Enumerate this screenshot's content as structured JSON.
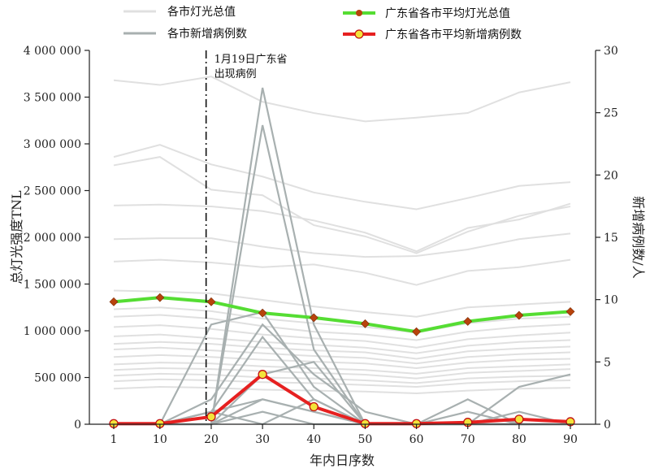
{
  "chart_data": {
    "type": "line",
    "x": [
      1,
      10,
      20,
      30,
      40,
      50,
      60,
      70,
      80,
      90
    ],
    "xlabel": "年内日序数",
    "y_left": {
      "label": "总灯光强度TNL",
      "ylim": [
        0,
        4000000
      ],
      "ticks": [
        0,
        500000,
        1000000,
        1500000,
        2000000,
        2500000,
        3000000,
        3500000,
        4000000
      ],
      "tick_labels": [
        "0",
        "500 000",
        "1 000 000",
        "1 500 000",
        "2 000 000",
        "2 500 000",
        "3 000 000",
        "3 500 000",
        "4 000 000"
      ]
    },
    "y_right": {
      "label": "新增病例数/人",
      "ylim": [
        0,
        30
      ],
      "ticks": [
        0,
        5,
        10,
        15,
        20,
        25,
        30
      ],
      "tick_labels": [
        "0",
        "5",
        "10",
        "15",
        "20",
        "25",
        "30"
      ]
    },
    "x_ticks": [
      1,
      10,
      20,
      30,
      40,
      50,
      60,
      70,
      80,
      90
    ],
    "legend": [
      {
        "label": "各市灯光总值",
        "color": "#e0e0e0"
      },
      {
        "label": "各市新增病例数",
        "color": "#a8b0b0"
      },
      {
        "label": "广东省各市平均灯光总值",
        "color": "#55dd33"
      },
      {
        "label": "广东省各市平均新增病例数",
        "color": "#e62020"
      }
    ],
    "annotation": {
      "text_line1": "1月19日广东省",
      "text_line2": "出现病例",
      "x": 19
    },
    "series_avg_light": {
      "name": "广东省各市平均灯光总值",
      "values": [
        1310000,
        1355000,
        1310000,
        1190000,
        1140000,
        1075000,
        990000,
        1100000,
        1165000,
        1205000
      ]
    },
    "series_avg_cases": {
      "name": "广东省各市平均新增病例数",
      "values": [
        0.05,
        0.05,
        0.6,
        4.0,
        1.4,
        0.05,
        0.05,
        0.15,
        0.4,
        0.2
      ]
    },
    "series_city_light": [
      [
        3680000,
        3630000,
        3720000,
        3450000,
        3330000,
        3240000,
        3280000,
        3330000,
        3550000,
        3660000
      ],
      [
        2860000,
        2990000,
        2780000,
        2650000,
        2480000,
        2380000,
        2300000,
        2420000,
        2550000,
        2590000
      ],
      [
        2770000,
        2860000,
        2510000,
        2450000,
        2130000,
        2010000,
        1830000,
        2060000,
        2230000,
        2330000
      ],
      [
        2340000,
        2350000,
        2330000,
        2280000,
        2180000,
        2050000,
        1850000,
        2100000,
        2190000,
        2360000
      ],
      [
        1980000,
        1990000,
        1990000,
        1900000,
        1830000,
        1790000,
        1800000,
        1870000,
        1980000,
        2040000
      ],
      [
        1740000,
        1760000,
        1730000,
        1680000,
        1710000,
        1620000,
        1490000,
        1640000,
        1680000,
        1760000
      ],
      [
        1430000,
        1420000,
        1400000,
        1330000,
        1260000,
        1200000,
        1150000,
        1250000,
        1280000,
        1310000
      ],
      [
        1230000,
        1250000,
        1210000,
        1130000,
        1080000,
        1040000,
        980000,
        1080000,
        1130000,
        1150000
      ],
      [
        1150000,
        1170000,
        1130000,
        1050000,
        990000,
        960000,
        900000,
        990000,
        1040000,
        1070000
      ],
      [
        1040000,
        1060000,
        1020000,
        960000,
        920000,
        890000,
        820000,
        910000,
        950000,
        980000
      ],
      [
        940000,
        960000,
        920000,
        880000,
        850000,
        820000,
        760000,
        840000,
        880000,
        900000
      ],
      [
        860000,
        880000,
        860000,
        820000,
        790000,
        770000,
        700000,
        780000,
        810000,
        830000
      ],
      [
        800000,
        820000,
        790000,
        760000,
        730000,
        710000,
        650000,
        720000,
        750000,
        770000
      ],
      [
        720000,
        740000,
        720000,
        690000,
        670000,
        650000,
        600000,
        660000,
        690000,
        700000
      ],
      [
        640000,
        660000,
        650000,
        620000,
        600000,
        580000,
        540000,
        600000,
        620000,
        640000
      ],
      [
        580000,
        600000,
        590000,
        570000,
        550000,
        530000,
        490000,
        550000,
        570000,
        590000
      ],
      [
        520000,
        540000,
        530000,
        500000,
        490000,
        470000,
        440000,
        490000,
        510000,
        520000
      ],
      [
        460000,
        480000,
        470000,
        450000,
        440000,
        420000,
        400000,
        440000,
        460000,
        470000
      ],
      [
        380000,
        400000,
        390000,
        370000,
        360000,
        350000,
        330000,
        360000,
        380000,
        390000
      ]
    ],
    "series_city_cases": [
      [
        0,
        0,
        0,
        27,
        8,
        0,
        0,
        0,
        0,
        0
      ],
      [
        0,
        0,
        0,
        24,
        6,
        0,
        0,
        0,
        0,
        0
      ],
      [
        0,
        0,
        8,
        9,
        3,
        0,
        0,
        0,
        3,
        4
      ],
      [
        0,
        0,
        2,
        8,
        4,
        1,
        0,
        2,
        0,
        0
      ],
      [
        0,
        0,
        1,
        7,
        2,
        0,
        0,
        0,
        0,
        0
      ],
      [
        0,
        0,
        0,
        4,
        5,
        0,
        0,
        0,
        1,
        0
      ],
      [
        0,
        0,
        1,
        2,
        1,
        0,
        0,
        0,
        0,
        0
      ],
      [
        0,
        0,
        0,
        1,
        0,
        0,
        0,
        0,
        0,
        0
      ],
      [
        0,
        0,
        1,
        0,
        2,
        0,
        0,
        0,
        0,
        0
      ],
      [
        0,
        0,
        0,
        2,
        1,
        0,
        0,
        1,
        0,
        0
      ]
    ]
  }
}
